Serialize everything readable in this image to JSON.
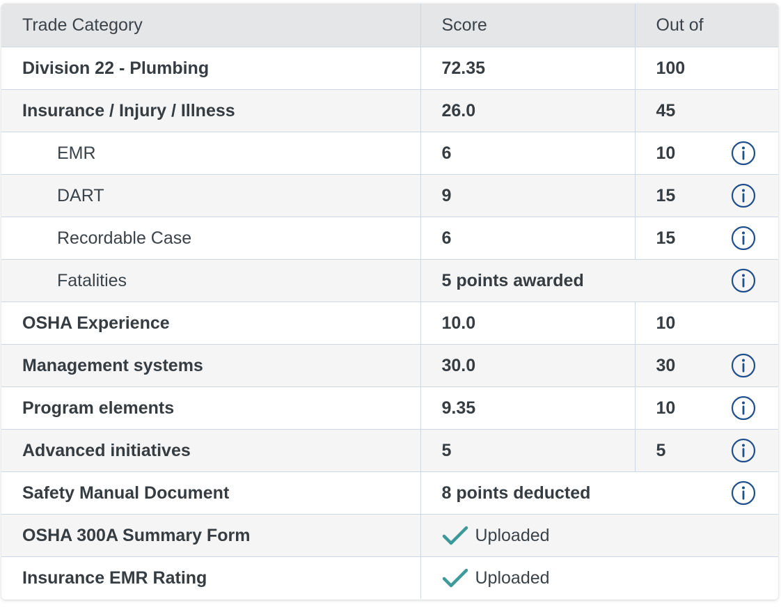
{
  "table": {
    "headers": {
      "category": "Trade Category",
      "score": "Score",
      "out_of": "Out of"
    },
    "rows": [
      {
        "category": "Division 22 - Plumbing",
        "score": "72.35",
        "out_of": "100"
      },
      {
        "category": "Insurance / Injury / Illness",
        "score": "26.0",
        "out_of": "45"
      },
      {
        "category": "EMR",
        "score": "6",
        "out_of": "10",
        "icon": "info-icon"
      },
      {
        "category": "DART",
        "score": "9",
        "out_of": "15",
        "icon": "info-icon"
      },
      {
        "category": "Recordable Case",
        "score": "6",
        "out_of": "15",
        "icon": "info-icon"
      },
      {
        "category": "Fatalities",
        "note": "5 points awarded",
        "icon": "info-icon"
      },
      {
        "category": "OSHA Experience",
        "score": "10.0",
        "out_of": "10"
      },
      {
        "category": "Management systems",
        "score": "30.0",
        "out_of": "30",
        "icon": "info-icon"
      },
      {
        "category": "Program elements",
        "score": "9.35",
        "out_of": "10",
        "icon": "info-icon"
      },
      {
        "category": "Advanced initiatives",
        "score": "5",
        "out_of": "5",
        "icon": "info-icon"
      },
      {
        "category": "Safety Manual Document",
        "note": "8 points deducted",
        "icon": "info-icon"
      },
      {
        "category": "OSHA 300A Summary Form",
        "status": "Uploaded",
        "icon": "check-icon"
      },
      {
        "category": "Insurance EMR Rating",
        "status": "Uploaded",
        "icon": "check-icon"
      }
    ]
  },
  "colors": {
    "header_bg": "#e4e6e8",
    "border": "#ccd8e6",
    "info_icon": "#1f4e8c",
    "check_icon": "#3e9a9a",
    "row_alt_bg": "#f5f5f5"
  }
}
